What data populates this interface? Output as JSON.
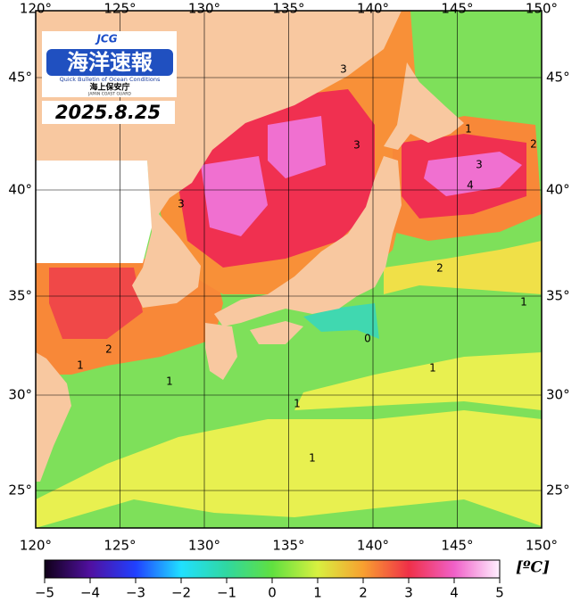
{
  "map": {
    "lon_labels": [
      "120°",
      "125°",
      "130°",
      "135°",
      "140°",
      "145°",
      "150°"
    ],
    "lat_labels": [
      "45°",
      "40°",
      "35°",
      "30°",
      "25°"
    ],
    "contour_labels": [
      "3",
      "3",
      "3",
      "1",
      "2",
      "3",
      "4",
      "2",
      "1",
      "0",
      "1",
      "2",
      "1",
      "1",
      "1",
      "1"
    ]
  },
  "logo": {
    "brand": "JCG",
    "title": "海洋速報",
    "subtitle": "Quick Bulletin of Ocean Conditions",
    "org": "海上保安庁",
    "org_en": "JAPAN COAST GUARD"
  },
  "date": "2025.8.25",
  "colorbar": {
    "ticks": [
      "−5",
      "−4",
      "−3",
      "−2",
      "−1",
      "0",
      "1",
      "2",
      "3",
      "4",
      "5"
    ],
    "unit": "[ºC]"
  }
}
